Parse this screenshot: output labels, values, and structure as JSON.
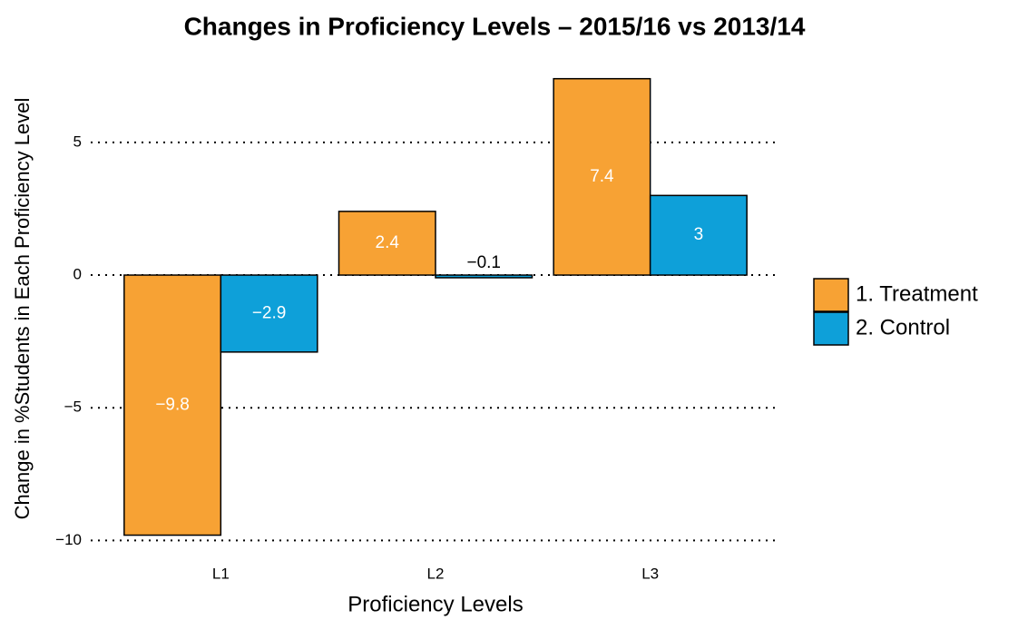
{
  "chart_data": {
    "type": "bar",
    "title": "Changes in Proficiency Levels – 2015/16 vs 2013/14",
    "x_label": "Proficiency Levels",
    "y_label": "Change in %Students in Each Proficiency Level",
    "categories": [
      "L1",
      "L2",
      "L3"
    ],
    "series": [
      {
        "name": "1. Treatment",
        "color": "#f7a234",
        "values": [
          -9.8,
          2.4,
          7.4
        ],
        "value_labels": [
          "−9.8",
          "2.4",
          "7.4"
        ]
      },
      {
        "name": "2. Control",
        "color": "#0ea0d9",
        "values": [
          -2.9,
          -0.1,
          3
        ],
        "value_labels": [
          "−2.9",
          "−0.1",
          "3"
        ]
      }
    ],
    "ylim": [
      -10.5,
      7.8
    ],
    "yticks": [
      {
        "value": -10,
        "label": "−10"
      },
      {
        "value": -5,
        "label": "−5"
      },
      0,
      5
    ],
    "grid": true,
    "legend": "right"
  }
}
